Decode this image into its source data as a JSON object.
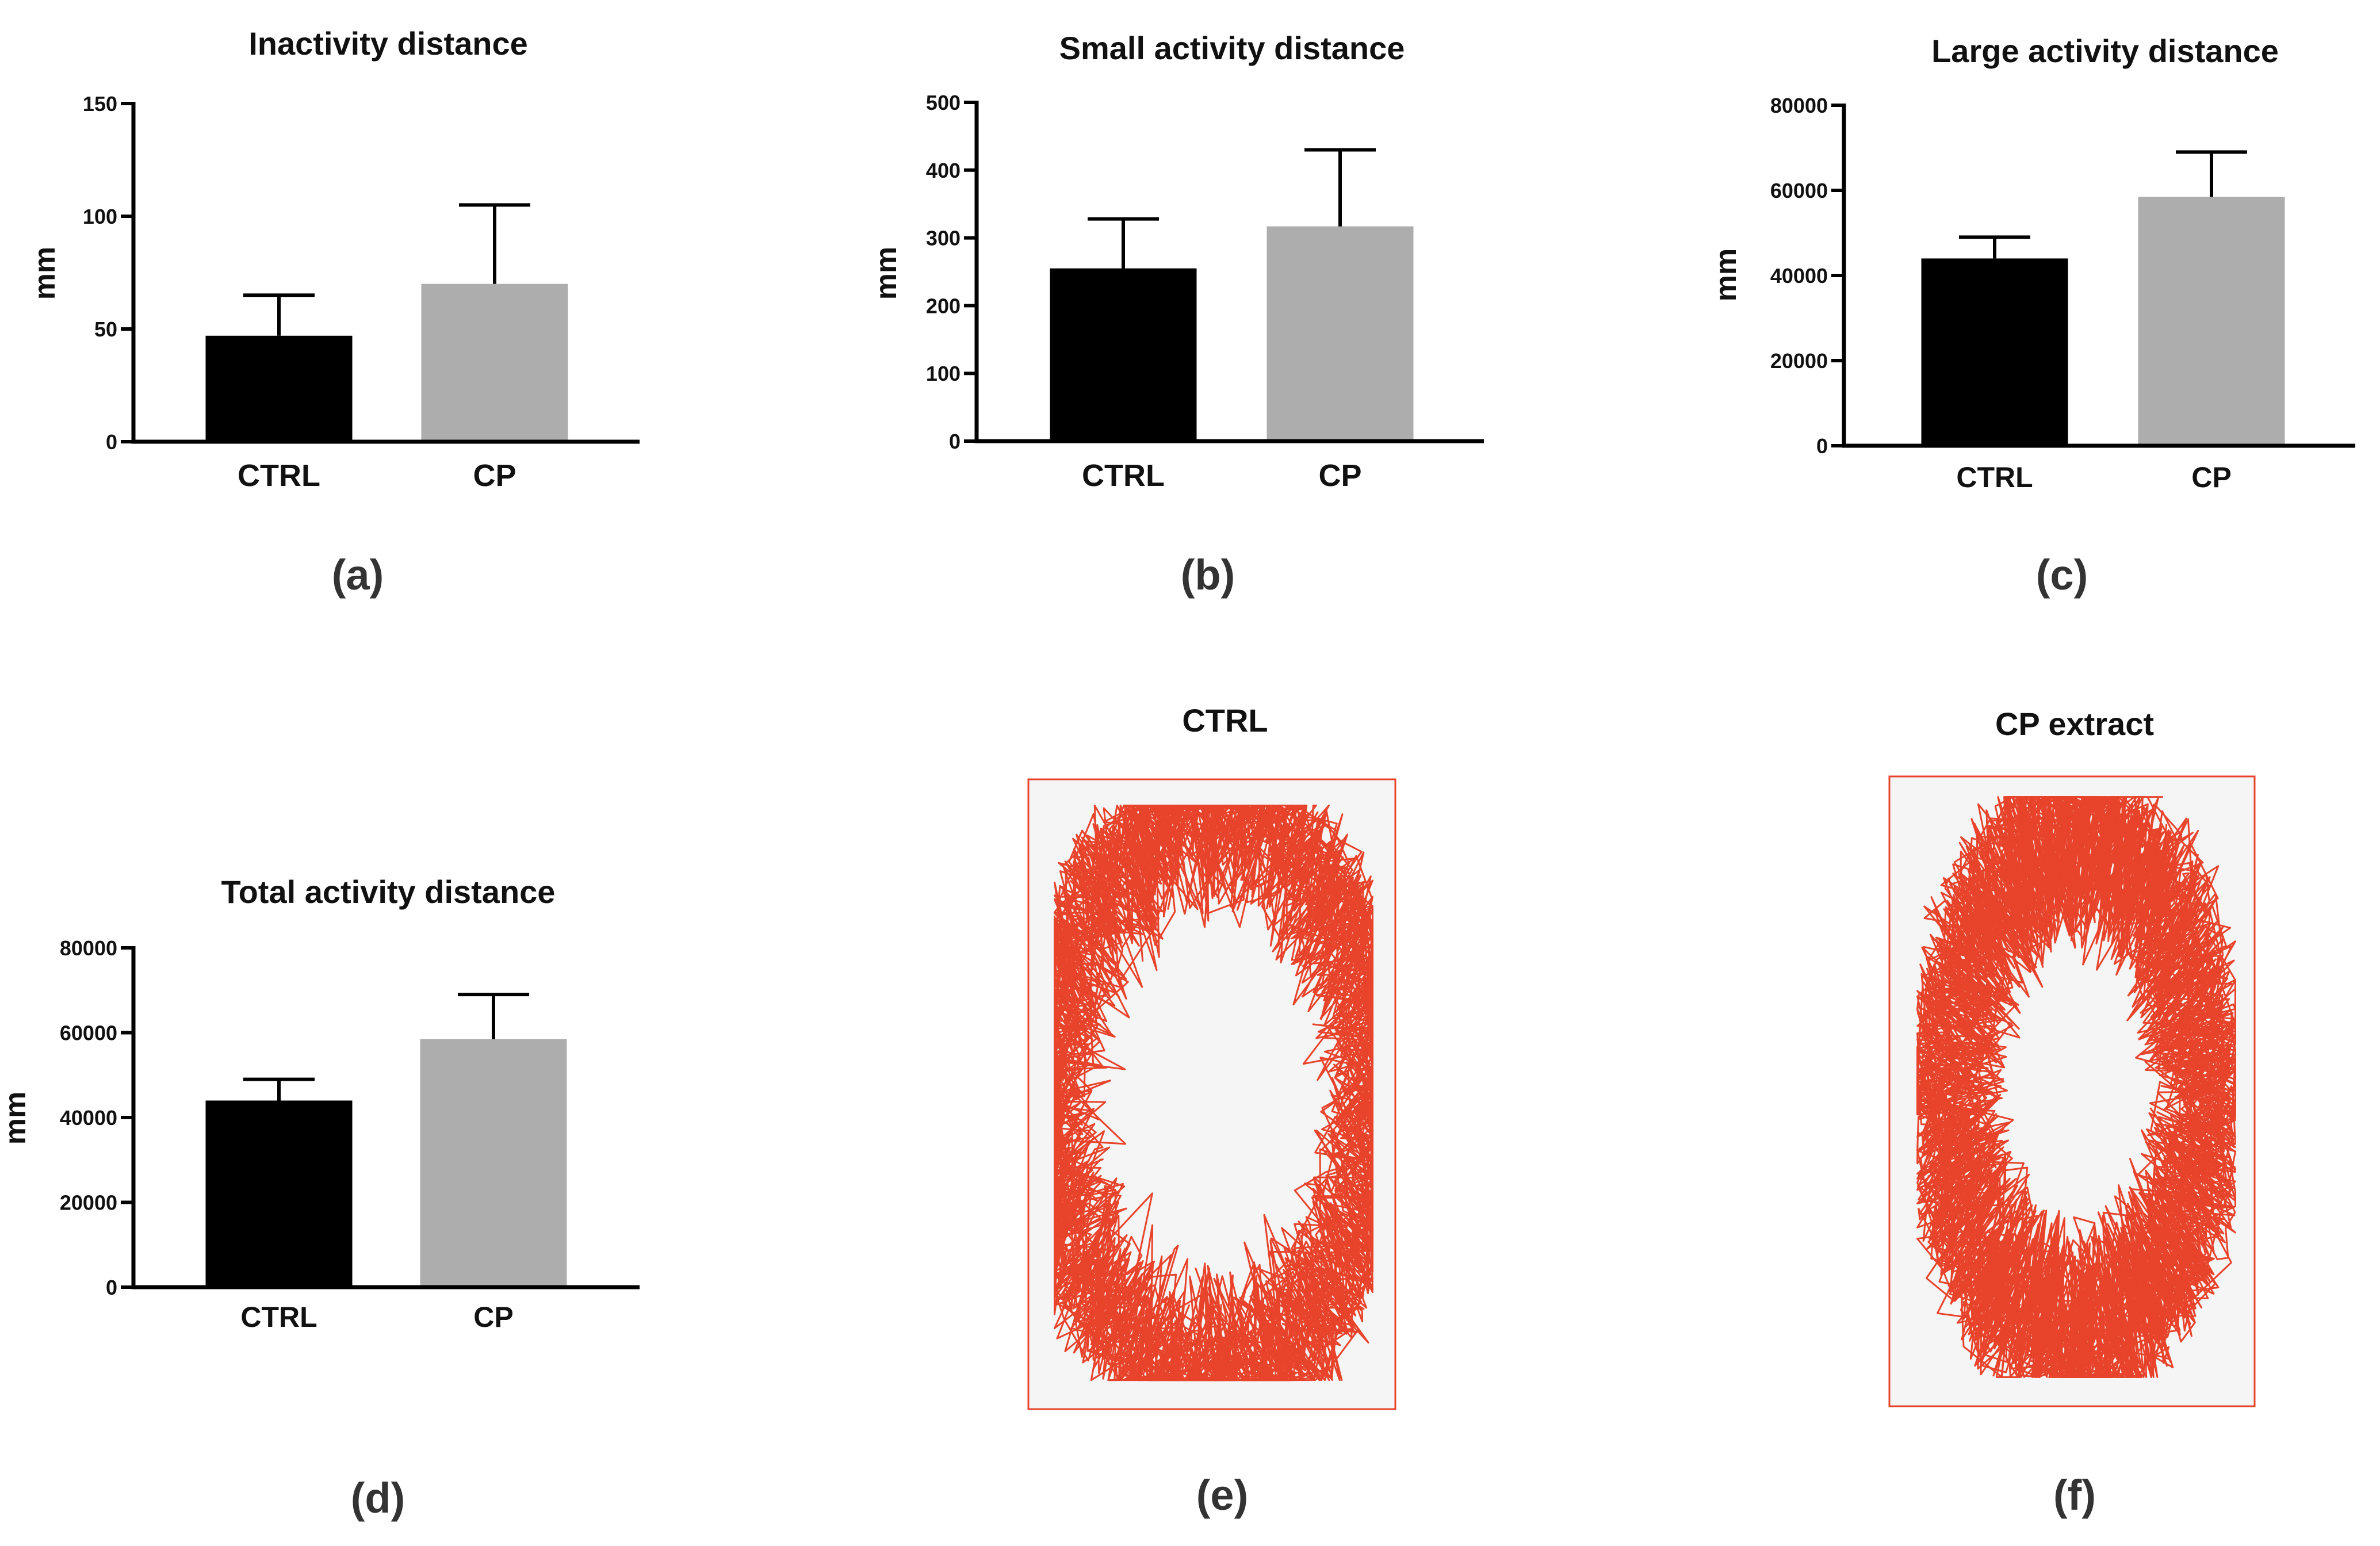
{
  "chart_data": [
    {
      "type": "bar",
      "panel": "(a)",
      "title": "Inactivity distance",
      "ylabel": "mm",
      "categories": [
        "CTRL",
        "CP"
      ],
      "values": [
        47,
        70
      ],
      "errors": [
        18,
        35
      ],
      "colors": [
        "#000000",
        "#adadad"
      ],
      "ylim": [
        0,
        150
      ],
      "yticks": [
        "0",
        "50",
        "100",
        "150"
      ]
    },
    {
      "type": "bar",
      "panel": "(b)",
      "title": "Small activity distance",
      "ylabel": "mm",
      "categories": [
        "CTRL",
        "CP"
      ],
      "values": [
        255,
        317
      ],
      "errors": [
        73,
        113
      ],
      "colors": [
        "#000000",
        "#adadad"
      ],
      "ylim": [
        0,
        500
      ],
      "yticks": [
        "0",
        "100",
        "200",
        "300",
        "400",
        "500"
      ]
    },
    {
      "type": "bar",
      "panel": "(c)",
      "title": "Large activity distance",
      "ylabel": "mm",
      "categories": [
        "CTRL",
        "CP"
      ],
      "values": [
        44000,
        58500
      ],
      "errors": [
        5000,
        10500
      ],
      "colors": [
        "#000000",
        "#adadad"
      ],
      "ylim": [
        0,
        80000
      ],
      "yticks": [
        "0",
        "20000",
        "40000",
        "60000",
        "80000"
      ]
    },
    {
      "type": "bar",
      "panel": "(d)",
      "title": "Total activity distance",
      "ylabel": "mm",
      "categories": [
        "CTRL",
        "CP"
      ],
      "values": [
        44000,
        58500
      ],
      "errors": [
        5000,
        10500
      ],
      "colors": [
        "#000000",
        "#adadad"
      ],
      "ylim": [
        0,
        80000
      ],
      "yticks": [
        "0",
        "20000",
        "40000",
        "60000",
        "80000"
      ]
    }
  ],
  "tracks": [
    {
      "panel": "(e)",
      "title": "CTRL",
      "color": "#e8432b"
    },
    {
      "panel": "(f)",
      "title": "CP extract",
      "color": "#e8432b"
    }
  ]
}
